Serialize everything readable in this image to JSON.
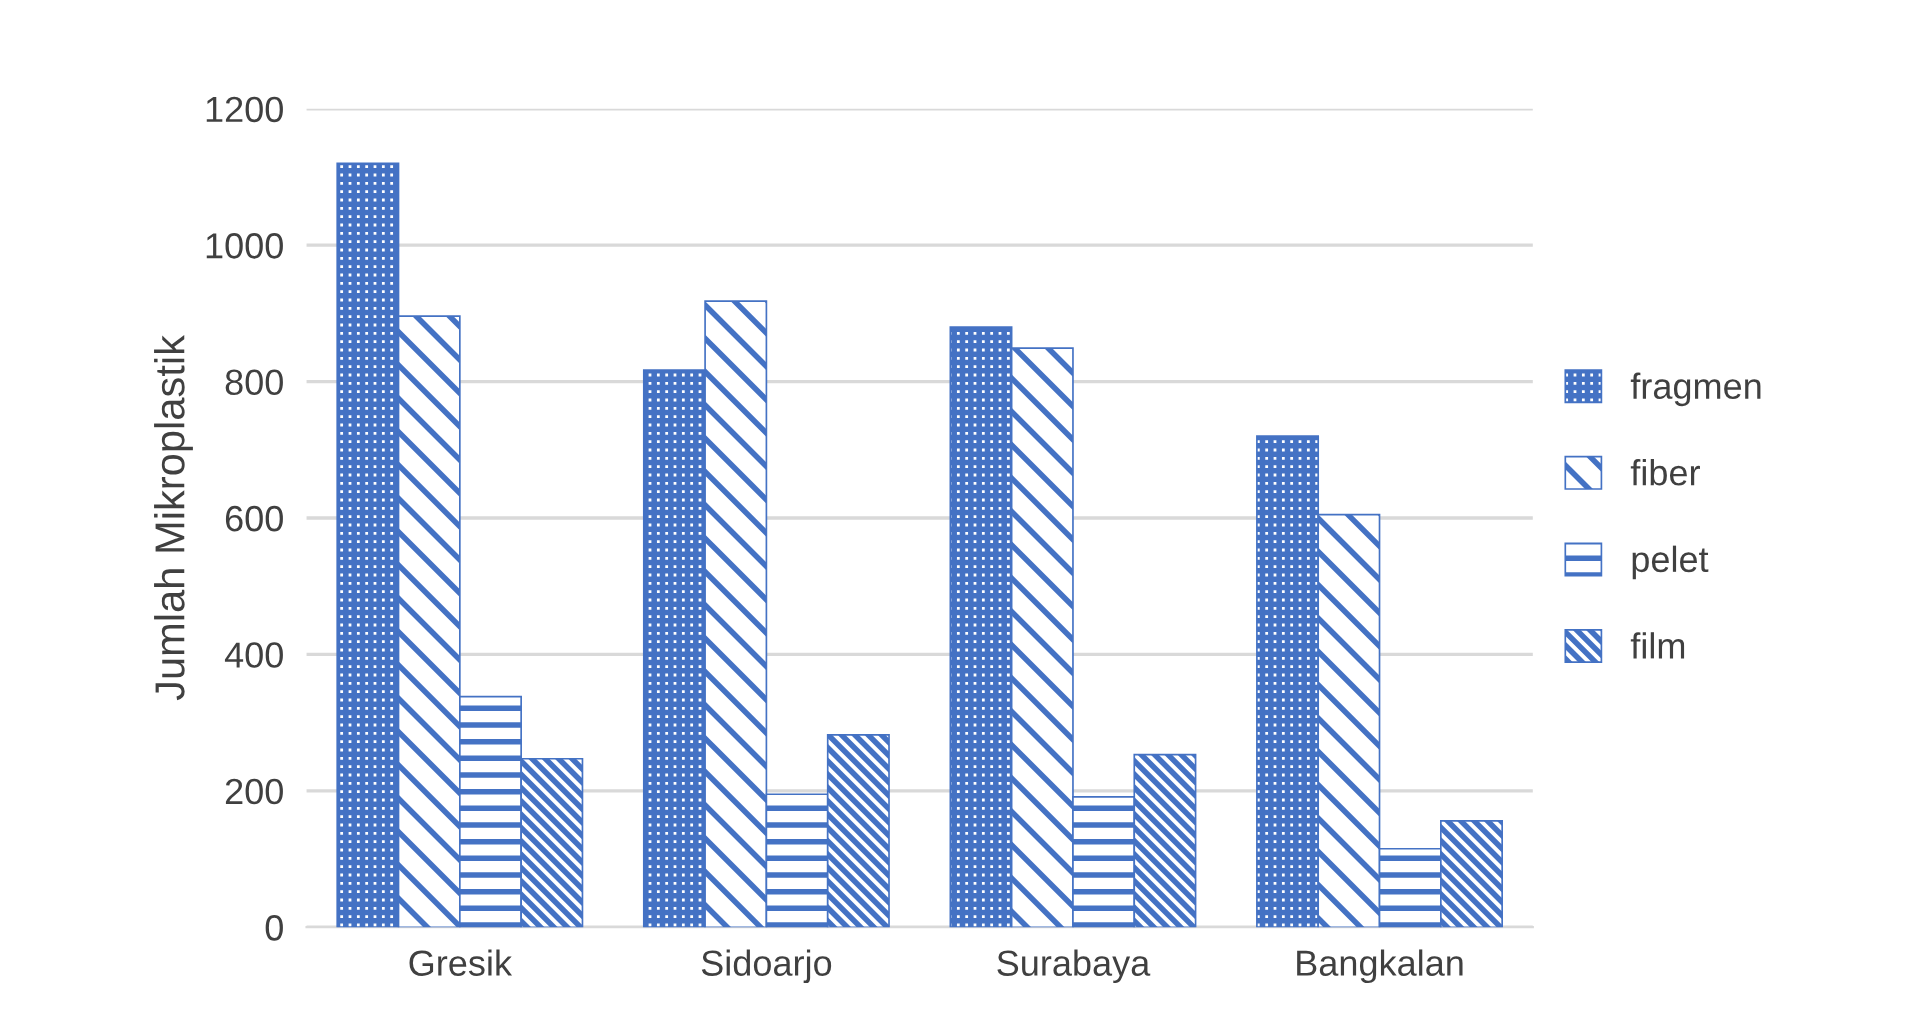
{
  "chart_data": {
    "type": "bar",
    "ylabel": "Jumlah Mikroplastik",
    "categories": [
      "Gresik",
      "Sidoarjo",
      "Surabaya",
      "Bangkalan"
    ],
    "series": [
      {
        "name": "fragmen",
        "color": "#4472c4",
        "values": [
          1120,
          817,
          880,
          720
        ]
      },
      {
        "name": "fiber",
        "color": "#4472c4",
        "values": [
          896,
          918,
          849,
          605
        ]
      },
      {
        "name": "pelet",
        "color": "#4472c4",
        "values": [
          338,
          195,
          191,
          115
        ]
      },
      {
        "name": "film",
        "color": "#4472c4",
        "values": [
          247,
          282,
          253,
          156
        ]
      }
    ],
    "ylim": [
      0,
      1200
    ],
    "yticks": [
      0,
      200,
      400,
      600,
      800,
      1000,
      1200
    ],
    "grid": "y",
    "legend": "right"
  }
}
